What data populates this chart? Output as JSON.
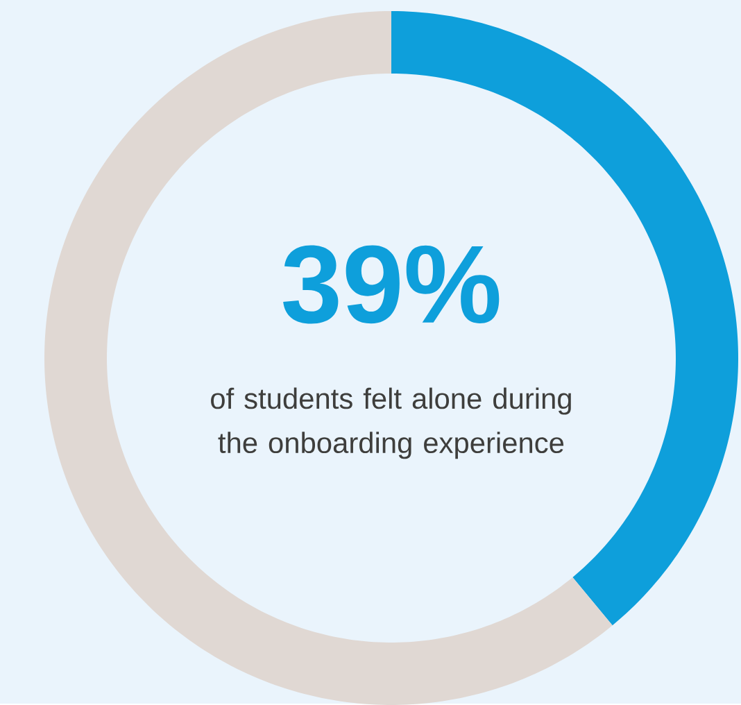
{
  "chart_data": {
    "type": "donut",
    "categories": [
      null,
      null
    ],
    "values": [
      39,
      61
    ],
    "colors": [
      "#0e9fdb",
      "#e0d8d3"
    ],
    "value_labels": [
      "39%",
      null
    ],
    "annotations": [
      "of students felt alone during the onboarding experience"
    ]
  }
}
